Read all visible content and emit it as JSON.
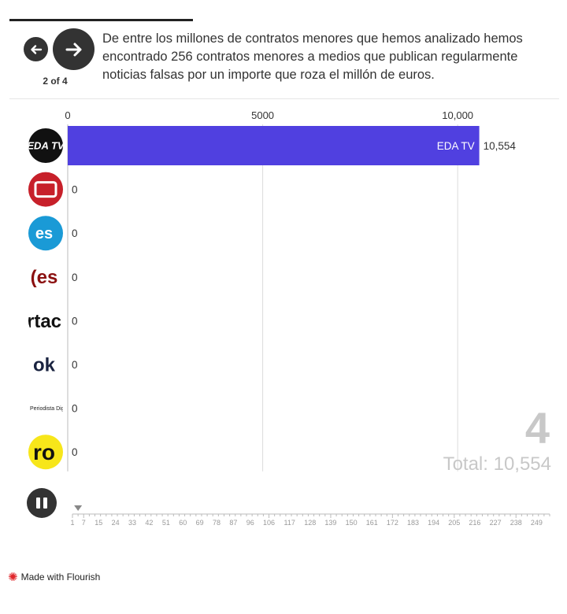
{
  "caption": "De entre los millones de contratos menores que hemos analizado hemos encontrado 256 contratos menores a medios que publican regularmente noticias falsas por un importe que roza el millón de euros.",
  "step_indicator": "2 of 4",
  "counter": "4",
  "total_label": "Total: 10,554",
  "footer": "Made with Flourish",
  "colors": {
    "bar": "#5040e0",
    "text": "#333333",
    "muted": "#c8c8c8",
    "brand": "#e0262b"
  },
  "chart_data": {
    "type": "bar",
    "orientation": "horizontal",
    "categories": [
      "EDA TV",
      "",
      "",
      "",
      "",
      "",
      "",
      ""
    ],
    "logo_text": [
      "EDA TV",
      "",
      "es",
      "(es",
      "rtac",
      "ok",
      "Periodista Digital",
      "ro"
    ],
    "values": [
      10554,
      0,
      0,
      0,
      0,
      0,
      0,
      0
    ],
    "value_labels": [
      "10,554",
      "0",
      "0",
      "0",
      "0",
      "0",
      "0",
      "0"
    ],
    "xlim": [
      0,
      12400
    ],
    "ticks": [
      0,
      5000,
      10000
    ],
    "tick_labels": [
      "0",
      "5000",
      "10,000"
    ],
    "grid": true
  },
  "timeline": {
    "ticks": [
      "1",
      "7",
      "15",
      "24",
      "33",
      "42",
      "51",
      "60",
      "69",
      "78",
      "87",
      "96",
      "106",
      "117",
      "128",
      "139",
      "150",
      "161",
      "172",
      "183",
      "194",
      "205",
      "216",
      "227",
      "238",
      "249"
    ],
    "current": 4
  }
}
